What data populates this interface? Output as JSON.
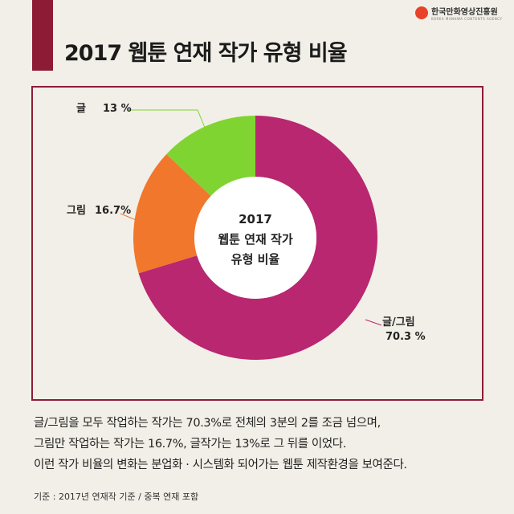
{
  "header": {
    "title": "2017 웹툰 연재 작가 유형 비율",
    "logo_name": "한국만화영상진흥원",
    "logo_sub": "KOREA MANHWA CONTENTS AGENCY"
  },
  "chart_data": {
    "type": "pie",
    "variant": "donut",
    "title": "2017 웹툰 연재 작가 유형 비율",
    "center_label": [
      "2017",
      "웹툰 연재 작가",
      "유형 비율"
    ],
    "categories": [
      "글/그림",
      "그림",
      "글"
    ],
    "values": [
      70.3,
      16.7,
      13
    ],
    "labels": [
      "70.3 %",
      "16.7%",
      "13 %"
    ],
    "colors": [
      "#b8276f",
      "#f1772c",
      "#80d431"
    ]
  },
  "description": [
    "글/그림을 모두 작업하는 작가는 70.3%로 전체의 3분의 2를 조금 넘으며,",
    "그림만 작업하는 작가는 16.7%, 글작가는 13%로 그 뒤를 이었다.",
    "이런 작가 비율의 변화는 분업화 · 시스템화 되어가는 웹툰 제작환경을 보여준다."
  ],
  "note": "기준 : 2017년 연재작 기준 / 중복 연재 포함"
}
